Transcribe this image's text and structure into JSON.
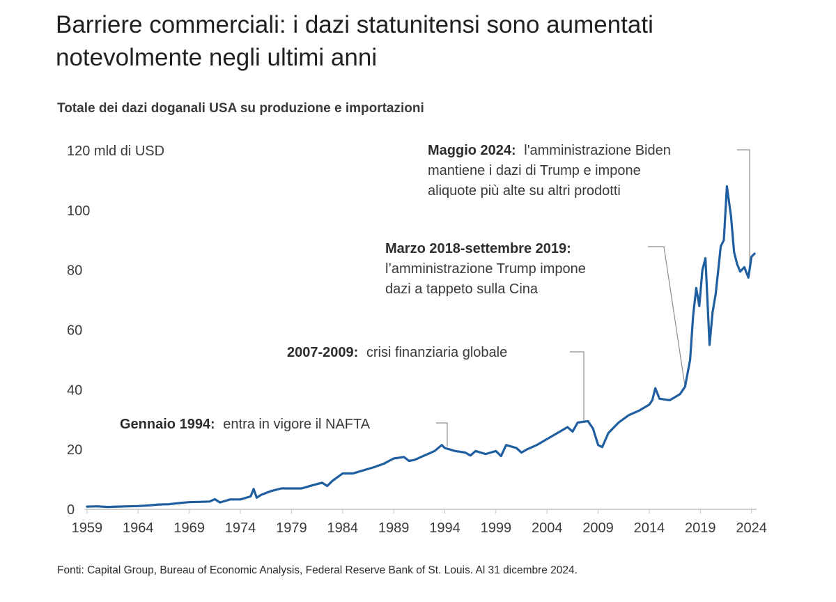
{
  "title": "Barriere commerciali: i dazi statunitensi sono aumentati notevolmente negli ultimi anni",
  "subtitle": "Totale dei dazi doganali USA su produzione e importazioni",
  "source": "Fonti: Capital Group, Bureau of Economic Analysis, Federal Reserve Bank of St. Louis. Al 31 dicembre 2024.",
  "colors": {
    "line": "#1f5fa0",
    "leader": "#8c8c8c",
    "axis": "#bfbfbf"
  },
  "chart_data": {
    "type": "line",
    "ylabel": "mld di USD",
    "ylim": [
      0,
      120
    ],
    "xlim": [
      1958.8,
      2024.5
    ],
    "y_ticks": [
      "0",
      "20",
      "40",
      "60",
      "80",
      "100",
      "120 mld di USD"
    ],
    "x_ticks": [
      "1959",
      "1964",
      "1969",
      "1974",
      "1979",
      "1984",
      "1989",
      "1994",
      "1999",
      "2004",
      "2009",
      "2014",
      "2019",
      "2024"
    ],
    "series": [
      {
        "x": [
          1959,
          1960,
          1961,
          1962,
          1963,
          1964,
          1965,
          1966,
          1967,
          1968,
          1969,
          1970,
          1971,
          1971.5,
          1972,
          1973,
          1974,
          1975,
          1975.3,
          1975.6,
          1976,
          1977,
          1978,
          1979,
          1980,
          1981,
          1982,
          1982.5,
          1983,
          1984,
          1985,
          1986,
          1987,
          1988,
          1989,
          1990,
          1990.5,
          1991,
          1992,
          1993,
          1993.7,
          1994,
          1995,
          1996,
          1996.5,
          1997,
          1998,
          1999,
          1999.5,
          2000,
          2001,
          2001.5,
          2002,
          2003,
          2004,
          2005,
          2006,
          2006.5,
          2007,
          2008,
          2008.5,
          2009,
          2009.4,
          2010,
          2011,
          2012,
          2013,
          2014,
          2014.3,
          2014.6,
          2015,
          2016,
          2016.5,
          2017,
          2017.5,
          2018,
          2018.3,
          2018.6,
          2018.9,
          2019.2,
          2019.5,
          2019.9,
          2020.2,
          2020.5,
          2021,
          2021.3,
          2021.6,
          2022,
          2022.3,
          2022.6,
          2022.9,
          2023.3,
          2023.7,
          2024,
          2024.3
        ],
        "y": [
          0.9,
          1.0,
          0.8,
          0.9,
          1.0,
          1.1,
          1.3,
          1.6,
          1.7,
          2.1,
          2.4,
          2.5,
          2.6,
          3.4,
          2.3,
          3.3,
          3.3,
          4.3,
          6.8,
          3.9,
          4.8,
          6.1,
          7.0,
          7.0,
          7.0,
          8.0,
          8.9,
          7.8,
          9.5,
          12.0,
          12.0,
          13.0,
          14.0,
          15.2,
          17.0,
          17.5,
          16.2,
          16.5,
          18.0,
          19.5,
          21.5,
          20.5,
          19.5,
          19.0,
          18.0,
          19.5,
          18.5,
          19.5,
          17.8,
          21.5,
          20.5,
          19.0,
          20.0,
          21.5,
          23.5,
          25.5,
          27.5,
          26.0,
          29.0,
          29.5,
          27.0,
          21.5,
          20.8,
          25.5,
          29.0,
          31.5,
          33.0,
          35.0,
          36.5,
          40.5,
          37.0,
          36.5,
          37.5,
          38.5,
          41.0,
          50.0,
          65.0,
          74.0,
          68.0,
          80.0,
          84.0,
          55.0,
          66.0,
          72.0,
          88.0,
          90.0,
          108.0,
          98.0,
          86.0,
          82.0,
          79.5,
          81.0,
          77.5,
          84.5,
          85.5
        ]
      }
    ],
    "annotations": [
      {
        "bold": "Maggio 2024:",
        "lines": [
          "l'amministrazione Biden",
          "mantiene i dazi di Trump e impone",
          "aliquote più alte su altri prodotti"
        ]
      },
      {
        "bold": "Marzo 2018-settembre 2019:",
        "lines": [
          "",
          "l’amministrazione Trump impone",
          "dazi a tappeto sulla Cina"
        ]
      },
      {
        "bold": "2007-2009:",
        "lines": [
          "crisi finanziaria globale"
        ]
      },
      {
        "bold": "Gennaio 1994:",
        "lines": [
          "entra in vigore il NAFTA"
        ]
      }
    ]
  }
}
